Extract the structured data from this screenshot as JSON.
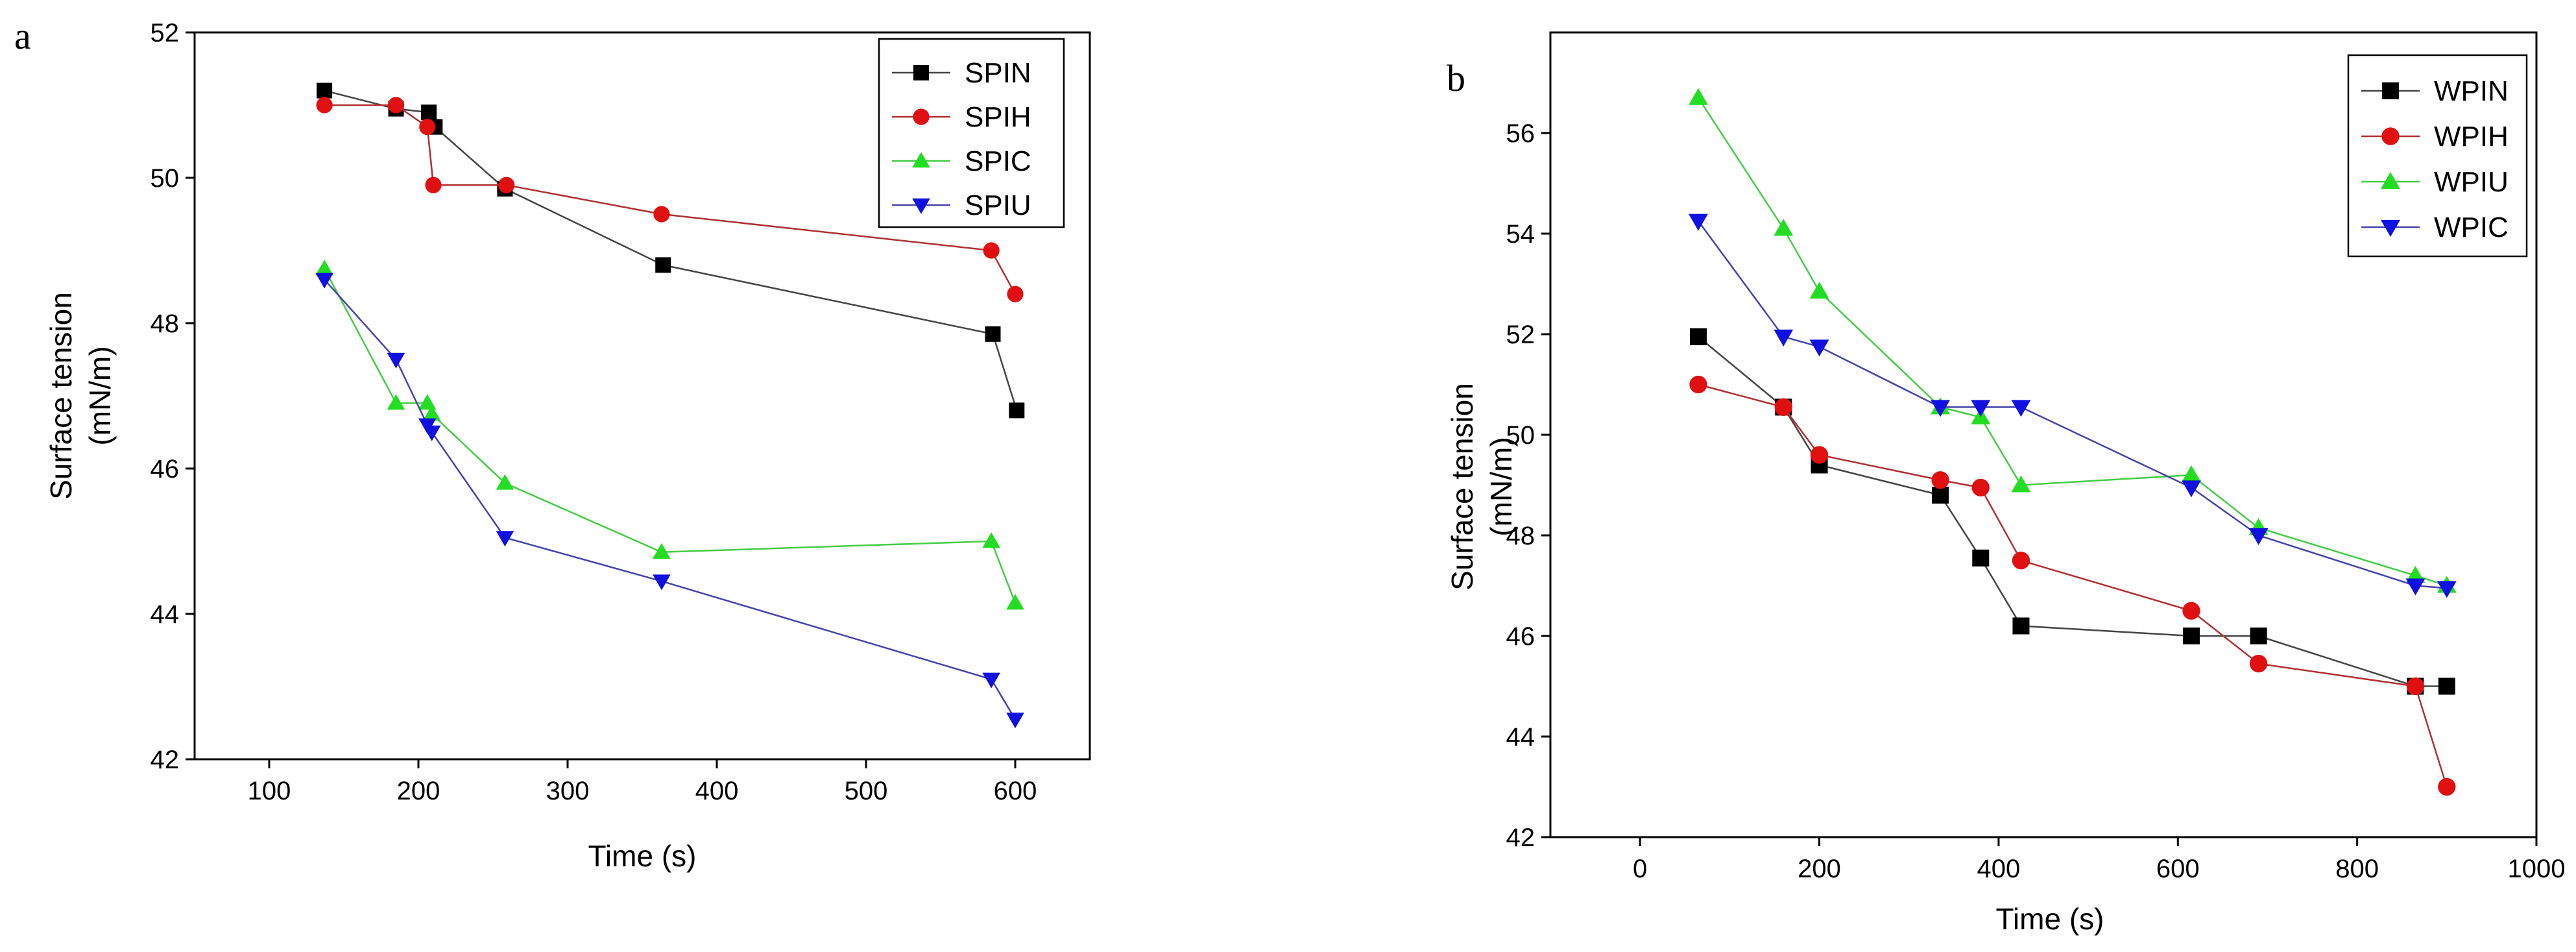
{
  "colors": {
    "black": "#000000",
    "red": "#e01010",
    "green": "#22dd22",
    "blue": "#1010e0",
    "black_line": "#444444",
    "red_line": "#b03030",
    "green_line": "#44cc44",
    "blue_line": "#4444aa"
  },
  "chart_data": [
    {
      "panel_label": "a",
      "type": "line",
      "title": "",
      "xlabel": "Time (s)",
      "ylabel_line1": "Surface tension",
      "ylabel_line2": "(mN/m)",
      "xlim": [
        50,
        650
      ],
      "ylim": [
        42,
        52
      ],
      "xticks": [
        100,
        200,
        300,
        400,
        500,
        600
      ],
      "yticks": [
        42,
        44,
        46,
        48,
        50,
        52
      ],
      "legend_position": "top-right",
      "series": [
        {
          "name": "SPIN",
          "marker": "square",
          "color_key": "black",
          "x": [
            137,
            185,
            207,
            211,
            258,
            364,
            585,
            601
          ],
          "y": [
            51.2,
            50.95,
            50.9,
            50.7,
            49.85,
            48.8,
            47.85,
            46.8
          ]
        },
        {
          "name": "SPIH",
          "marker": "circle",
          "color_key": "red",
          "x": [
            137,
            185,
            206,
            210,
            259,
            363,
            584,
            600
          ],
          "y": [
            51.0,
            51.0,
            50.7,
            49.9,
            49.9,
            49.5,
            49.0,
            48.4
          ]
        },
        {
          "name": "SPIC",
          "marker": "triangle-up",
          "color_key": "green",
          "x": [
            137,
            185,
            206,
            209,
            258,
            363,
            584,
            600
          ],
          "y": [
            48.75,
            46.9,
            46.9,
            46.75,
            45.8,
            44.85,
            45.0,
            44.15
          ]
        },
        {
          "name": "SPIU",
          "marker": "triangle-down",
          "color_key": "blue",
          "x": [
            137,
            185,
            206,
            209,
            258,
            363,
            584,
            600
          ],
          "y": [
            48.6,
            47.5,
            46.6,
            46.5,
            45.05,
            44.45,
            43.1,
            42.55
          ]
        }
      ]
    },
    {
      "panel_label": "b",
      "type": "line",
      "title": "",
      "xlabel": "Time (s)",
      "ylabel_line1": "Surface tension",
      "ylabel_line2": "(mN/m)",
      "xlim": [
        -100,
        1000
      ],
      "ylim": [
        42,
        58
      ],
      "xticks": [
        0,
        200,
        400,
        600,
        800,
        1000
      ],
      "yticks": [
        42,
        44,
        46,
        48,
        50,
        52,
        54,
        56
      ],
      "legend_position": "top-right",
      "series": [
        {
          "name": "WPIN",
          "marker": "square",
          "color_key": "black",
          "x": [
            65,
            160,
            200,
            335,
            380,
            425,
            615,
            690,
            865,
            900
          ],
          "y": [
            51.95,
            50.55,
            49.4,
            48.8,
            47.55,
            46.2,
            46.0,
            46.0,
            45.0,
            45.0
          ]
        },
        {
          "name": "WPIH",
          "marker": "circle",
          "color_key": "red",
          "x": [
            65,
            160,
            200,
            335,
            380,
            425,
            615,
            690,
            865,
            900
          ],
          "y": [
            51.0,
            50.55,
            49.6,
            49.1,
            48.95,
            47.5,
            46.5,
            45.45,
            45.0,
            43.0
          ]
        },
        {
          "name": "WPIU",
          "marker": "triangle-up",
          "color_key": "green",
          "x": [
            65,
            160,
            200,
            335,
            380,
            425,
            615,
            690,
            865,
            900
          ],
          "y": [
            56.7,
            54.1,
            52.85,
            50.55,
            50.35,
            49.0,
            49.2,
            48.15,
            47.2,
            47.0
          ]
        },
        {
          "name": "WPIC",
          "marker": "triangle-down",
          "color_key": "blue",
          "x": [
            65,
            160,
            200,
            335,
            380,
            425,
            615,
            690,
            865,
            900
          ],
          "y": [
            54.25,
            51.95,
            51.75,
            50.55,
            50.55,
            50.55,
            48.95,
            48.0,
            47.0,
            46.95
          ]
        }
      ]
    }
  ]
}
